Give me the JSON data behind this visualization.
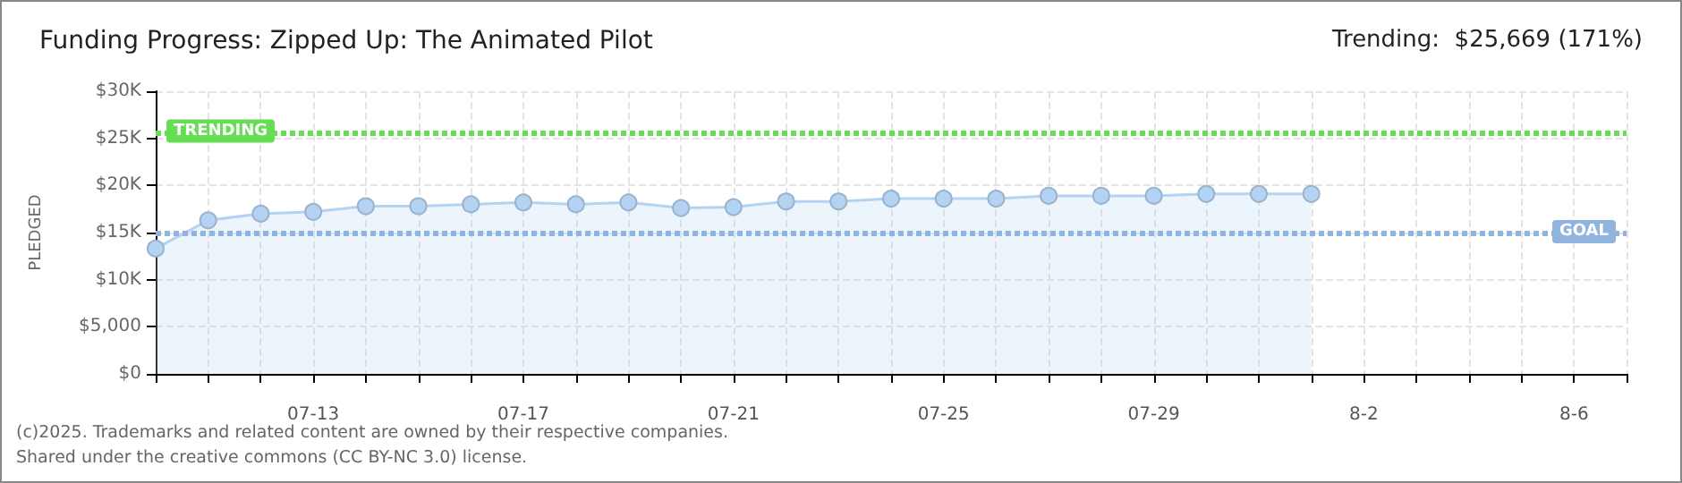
{
  "chart_data": {
    "type": "area",
    "title": "Funding Progress: Zipped Up: The Animated Pilot",
    "subtitle": "Trending:  $25,669 (171%)",
    "ylabel": "PLEDGED",
    "categories": [
      null,
      null,
      null,
      "07-13",
      null,
      null,
      null,
      "07-17",
      null,
      null,
      null,
      "07-21",
      null,
      null,
      null,
      "07-25",
      null,
      null,
      null,
      "07-29",
      null,
      null,
      null,
      "8-2",
      null,
      null,
      null,
      "8-6",
      null
    ],
    "series": [
      {
        "color": "#b4d2f2",
        "values": [
          13300,
          16300,
          17000,
          17200,
          17800,
          17800,
          18000,
          18200,
          18000,
          18200,
          17600,
          17700,
          18300,
          18300,
          18600,
          18600,
          18600,
          18900,
          18900,
          18900,
          19100,
          19100,
          19100,
          null,
          null,
          null,
          null,
          null,
          null
        ]
      }
    ],
    "ylim": [
      0,
      30000
    ],
    "yticks": [
      {
        "value": 0,
        "label": "$0"
      },
      {
        "value": 5000,
        "label": "$5,000"
      },
      {
        "value": 10000,
        "label": "$10K"
      },
      {
        "value": 15000,
        "label": "$15K"
      },
      {
        "value": 20000,
        "label": "$20K"
      },
      {
        "value": 25000,
        "label": "$25K"
      },
      {
        "value": 30000,
        "label": "$30K"
      }
    ],
    "ref_lines": [
      {
        "axis": "y",
        "value": 25669,
        "label": "TRENDING",
        "color": "#66dd55",
        "line_style": "dotted"
      },
      {
        "axis": "y",
        "value": 15000,
        "label": "GOAL",
        "color": "#8fb4dd",
        "line_style": "dotted"
      }
    ],
    "grid": true,
    "marker": "circle",
    "annotations": [
      "(c)2025. Trademarks and related content are owned by their respective companies.",
      "Shared under the creative commons (CC BY-NC 3.0) license."
    ]
  }
}
